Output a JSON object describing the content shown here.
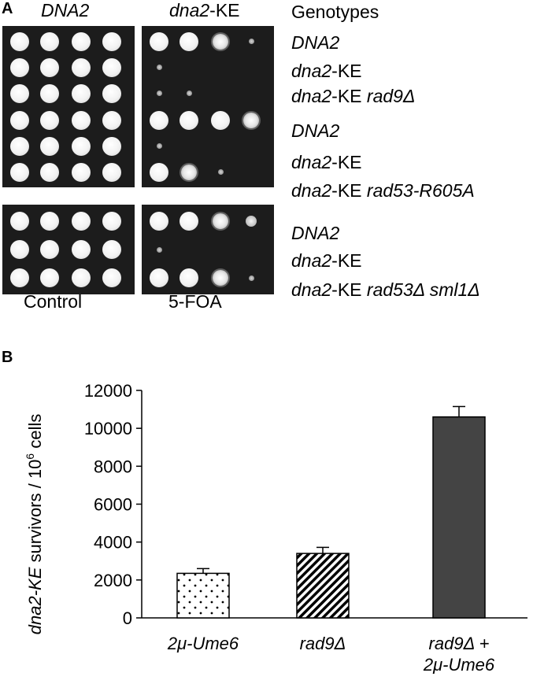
{
  "panel_a": {
    "letter": "A",
    "col_headers": {
      "control": "DNA2",
      "foa_italic": "dna2",
      "foa_rest": "-KE",
      "genotypes": "Genotypes"
    },
    "groups": [
      {
        "rows": [
          {
            "parts": [
              {
                "t": "DNA2",
                "i": true
              }
            ]
          },
          {
            "parts": [
              {
                "t": "dna2",
                "i": true
              },
              {
                "t": "-KE",
                "i": false
              }
            ]
          },
          {
            "parts": [
              {
                "t": "dna2",
                "i": true
              },
              {
                "t": "-KE ",
                "i": false
              },
              {
                "t": "rad9Δ",
                "i": true
              }
            ]
          }
        ],
        "growth_control": [
          [
            4,
            4,
            4,
            4
          ],
          [
            4,
            4,
            4,
            4
          ],
          [
            4,
            4,
            4,
            4
          ]
        ],
        "growth_foa": [
          [
            4,
            4,
            3,
            1
          ],
          [
            1,
            0,
            0,
            0
          ],
          [
            1,
            1,
            0,
            0
          ]
        ]
      },
      {
        "rows": [
          {
            "parts": [
              {
                "t": "DNA2",
                "i": true
              }
            ]
          },
          {
            "parts": [
              {
                "t": "dna2",
                "i": true
              },
              {
                "t": "-KE",
                "i": false
              }
            ]
          },
          {
            "parts": [
              {
                "t": "dna2",
                "i": true
              },
              {
                "t": "-KE ",
                "i": false
              },
              {
                "t": "rad53-R605A",
                "i": true
              }
            ]
          }
        ],
        "growth_control": [
          [
            4,
            4,
            4,
            4
          ],
          [
            4,
            4,
            4,
            4
          ],
          [
            4,
            4,
            4,
            4
          ]
        ],
        "growth_foa": [
          [
            4,
            4,
            4,
            3
          ],
          [
            1,
            0,
            0,
            0
          ],
          [
            4,
            3,
            1,
            0
          ]
        ]
      },
      {
        "rows": [
          {
            "parts": [
              {
                "t": "DNA2",
                "i": true
              }
            ]
          },
          {
            "parts": [
              {
                "t": "dna2",
                "i": true
              },
              {
                "t": "-KE",
                "i": false
              }
            ]
          },
          {
            "parts": [
              {
                "t": "dna2",
                "i": true
              },
              {
                "t": "-KE ",
                "i": false
              },
              {
                "t": "rad53Δ sml1Δ",
                "i": true
              }
            ]
          }
        ],
        "growth_control": [
          [
            4,
            4,
            4,
            4
          ],
          [
            4,
            4,
            4,
            4
          ],
          [
            4,
            4,
            4,
            4
          ]
        ],
        "growth_foa": [
          [
            4,
            4,
            3,
            2
          ],
          [
            1,
            0,
            0,
            0
          ],
          [
            4,
            4,
            3,
            1
          ]
        ]
      }
    ],
    "bottom_labels": {
      "control": "Control",
      "foa": "5-FOA"
    }
  },
  "panel_b": {
    "letter": "B",
    "chart_data": {
      "type": "bar",
      "categories": [
        "2μ-Ume6",
        "rad9Δ",
        "rad9Δ + 2μ-Ume6"
      ],
      "category_lines": [
        [
          "2μ-Ume6"
        ],
        [
          "rad9Δ"
        ],
        [
          "rad9Δ +",
          "2μ-Ume6"
        ]
      ],
      "values": [
        2350,
        3400,
        10600
      ],
      "errors": [
        250,
        320,
        550
      ],
      "ylim": [
        0,
        12000
      ],
      "yticks": [
        0,
        2000,
        4000,
        6000,
        8000,
        10000,
        12000
      ],
      "ylabel_parts": {
        "italic": "dna2-KE",
        "rest": " survivors  / 10",
        "sup": "6",
        "tail": " cells"
      },
      "fills": [
        "dots",
        "diagonal-stripes",
        "#444444"
      ]
    }
  }
}
